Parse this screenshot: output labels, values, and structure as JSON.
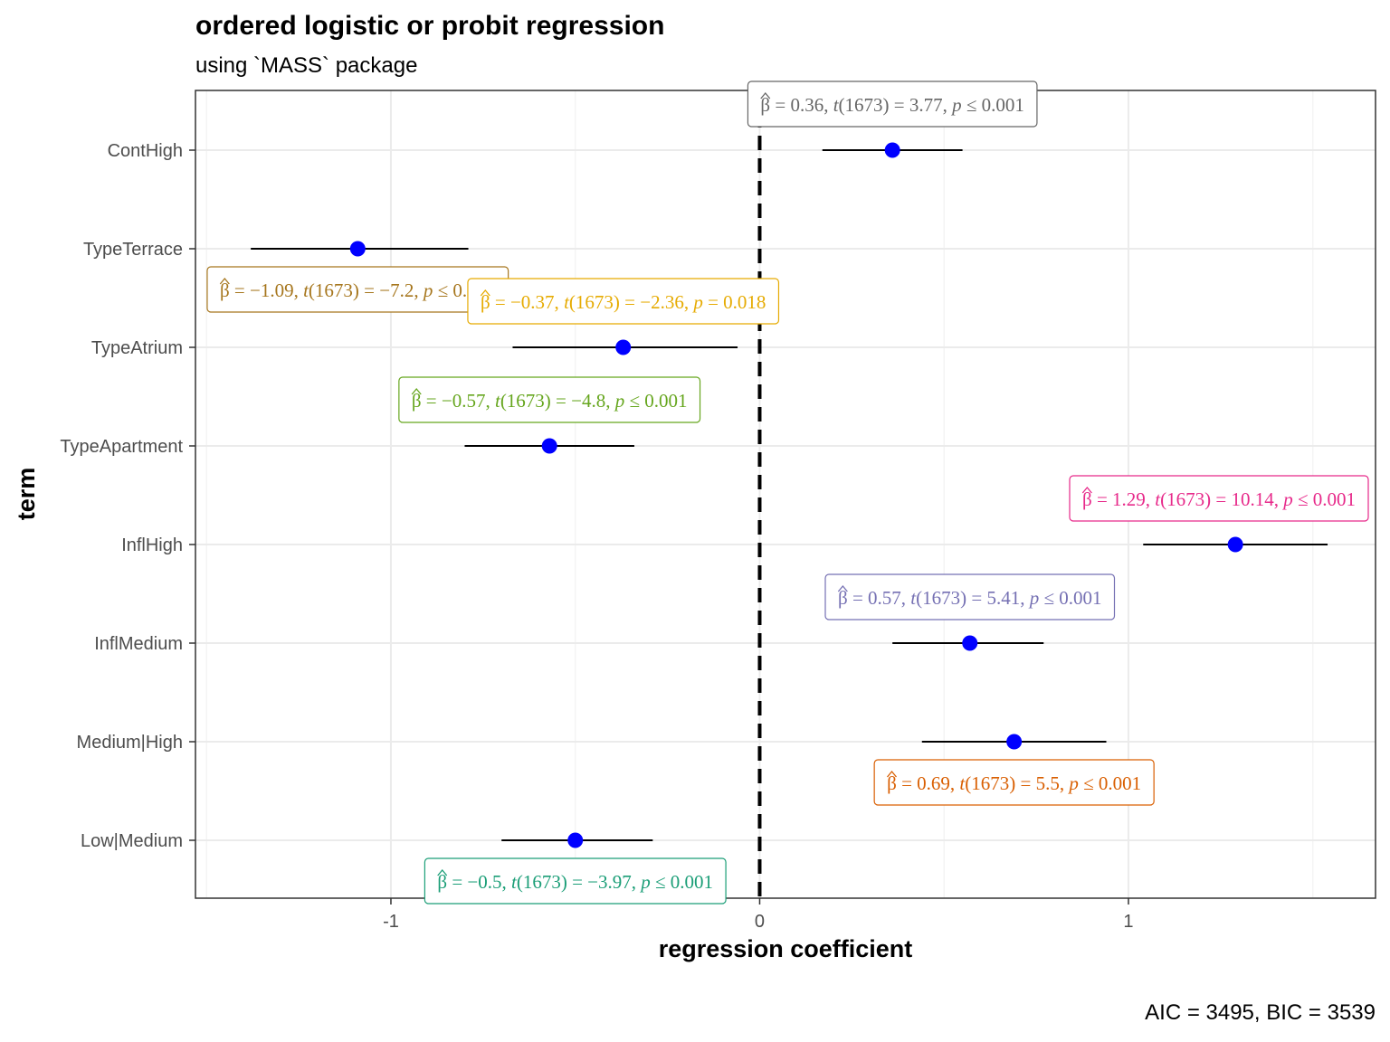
{
  "chart_data": {
    "type": "scatter",
    "title": "ordered logistic or probit regression",
    "subtitle": "using `MASS` package",
    "xlabel": "regression coefficient",
    "ylabel": "term",
    "caption": "AIC = 3495, BIC = 3539",
    "xlim": [
      -1.53,
      1.67
    ],
    "x_ticks": [
      -1,
      0,
      1
    ],
    "x_tick_labels": [
      "-1",
      "0",
      "1"
    ],
    "reference_line": 0,
    "grid": true,
    "point_color": "#0000FF",
    "terms": [
      {
        "term": "ContHigh",
        "estimate": 0.36,
        "conf_low": 0.17,
        "conf_high": 0.55,
        "label": {
          "beta": "0.36",
          "df": "1673",
          "t": "3.77",
          "p_op": "≤",
          "p": "0.001"
        },
        "color": "#666666",
        "label_pos": "above"
      },
      {
        "term": "TypeTerrace",
        "estimate": -1.09,
        "conf_low": -1.38,
        "conf_high": -0.79,
        "label": {
          "beta": "−1.09",
          "df": "1673",
          "t": "−7.2",
          "p_op": "≤",
          "p": "0.001"
        },
        "color": "#A6761D",
        "label_pos": "below"
      },
      {
        "term": "TypeAtrium",
        "estimate": -0.37,
        "conf_low": -0.67,
        "conf_high": -0.06,
        "label": {
          "beta": "−0.37",
          "df": "1673",
          "t": "−2.36",
          "p_op": "=",
          "p": "0.018"
        },
        "color": "#E6AB02",
        "label_pos": "above"
      },
      {
        "term": "TypeApartment",
        "estimate": -0.57,
        "conf_low": -0.8,
        "conf_high": -0.34,
        "label": {
          "beta": "−0.57",
          "df": "1673",
          "t": "−4.8",
          "p_op": "≤",
          "p": "0.001"
        },
        "color": "#66A61E",
        "label_pos": "above"
      },
      {
        "term": "InflHigh",
        "estimate": 1.29,
        "conf_low": 1.04,
        "conf_high": 1.54,
        "label": {
          "beta": "1.29",
          "df": "1673",
          "t": "10.14",
          "p_op": "≤",
          "p": "0.001"
        },
        "color": "#E7298A",
        "label_pos": "above"
      },
      {
        "term": "InflMedium",
        "estimate": 0.57,
        "conf_low": 0.36,
        "conf_high": 0.77,
        "label": {
          "beta": "0.57",
          "df": "1673",
          "t": "5.41",
          "p_op": "≤",
          "p": "0.001"
        },
        "color": "#7570B3",
        "label_pos": "above"
      },
      {
        "term": "Medium|High",
        "estimate": 0.69,
        "conf_low": 0.44,
        "conf_high": 0.94,
        "label": {
          "beta": "0.69",
          "df": "1673",
          "t": "5.5",
          "p_op": "≤",
          "p": "0.001"
        },
        "color": "#D95F02",
        "label_pos": "below"
      },
      {
        "term": "Low|Medium",
        "estimate": -0.5,
        "conf_low": -0.7,
        "conf_high": -0.29,
        "label": {
          "beta": "−0.5",
          "df": "1673",
          "t": "−3.97",
          "p_op": "≤",
          "p": "0.001"
        },
        "color": "#1B9E77",
        "label_pos": "below"
      }
    ]
  }
}
